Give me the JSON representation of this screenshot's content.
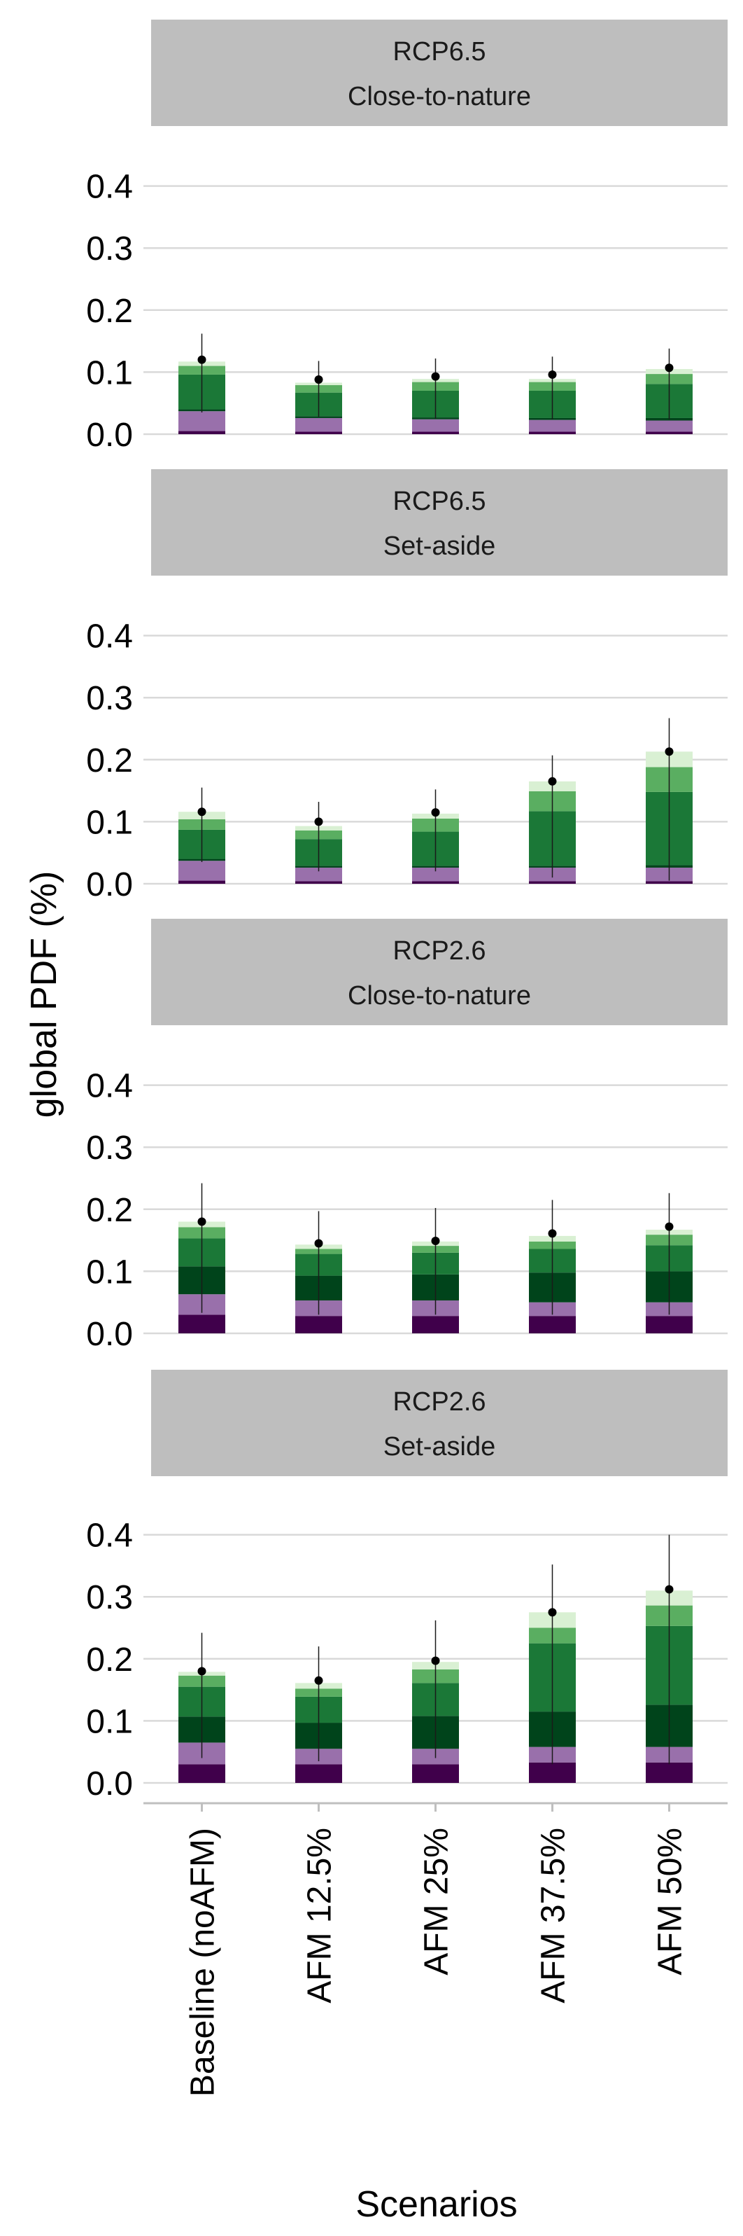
{
  "chart_data": {
    "type": "bar",
    "stacked": true,
    "xlabel": "Scenarios",
    "ylabel": "global PDF (%)",
    "categories": [
      "Baseline (noAFM)",
      "AFM 12.5%",
      "AFM 25%",
      "AFM 37.5%",
      "AFM 50%"
    ],
    "ylim": [
      0,
      0.45
    ],
    "yticks": [
      "0.0",
      "0.1",
      "0.2",
      "0.3",
      "0.4"
    ],
    "grid": true,
    "segment_colors": [
      "#40004b",
      "#9970ab",
      "#00441b",
      "#1b7837",
      "#5aae61",
      "#d9f0d3"
    ],
    "panels": [
      {
        "title_line1": "RCP6.5",
        "title_line2": "Close-to-nature",
        "stacks": [
          [
            0.005,
            0.032,
            0.003,
            0.056,
            0.014,
            0.007
          ],
          [
            0.004,
            0.022,
            0.003,
            0.038,
            0.012,
            0.004
          ],
          [
            0.004,
            0.02,
            0.003,
            0.043,
            0.014,
            0.005
          ],
          [
            0.004,
            0.019,
            0.003,
            0.044,
            0.014,
            0.005
          ],
          [
            0.004,
            0.018,
            0.004,
            0.055,
            0.016,
            0.008
          ]
        ],
        "points": [
          0.12,
          0.088,
          0.093,
          0.096,
          0.107
        ],
        "err_low": [
          0.035,
          0.028,
          0.025,
          0.024,
          0.024
        ],
        "err_high": [
          0.162,
          0.118,
          0.122,
          0.125,
          0.138
        ]
      },
      {
        "title_line1": "RCP6.5",
        "title_line2": "Set-aside",
        "stacks": [
          [
            0.005,
            0.032,
            0.003,
            0.047,
            0.017,
            0.012
          ],
          [
            0.004,
            0.022,
            0.003,
            0.043,
            0.014,
            0.007
          ],
          [
            0.004,
            0.022,
            0.003,
            0.055,
            0.021,
            0.008
          ],
          [
            0.004,
            0.022,
            0.003,
            0.088,
            0.032,
            0.016
          ],
          [
            0.004,
            0.022,
            0.004,
            0.118,
            0.04,
            0.025
          ]
        ],
        "points": [
          0.116,
          0.1,
          0.115,
          0.165,
          0.213
        ],
        "err_low": [
          0.035,
          0.02,
          0.02,
          0.01,
          0.005
        ],
        "err_high": [
          0.155,
          0.132,
          0.152,
          0.207,
          0.267
        ]
      },
      {
        "title_line1": "RCP2.6",
        "title_line2": "Close-to-nature",
        "stacks": [
          [
            0.03,
            0.033,
            0.045,
            0.045,
            0.018,
            0.009
          ],
          [
            0.028,
            0.025,
            0.04,
            0.035,
            0.008,
            0.007
          ],
          [
            0.028,
            0.025,
            0.042,
            0.035,
            0.011,
            0.007
          ],
          [
            0.028,
            0.022,
            0.048,
            0.038,
            0.012,
            0.009
          ],
          [
            0.028,
            0.022,
            0.05,
            0.042,
            0.017,
            0.008
          ]
        ],
        "points": [
          0.18,
          0.145,
          0.149,
          0.161,
          0.172
        ],
        "err_low": [
          0.033,
          0.03,
          0.03,
          0.03,
          0.03
        ],
        "err_high": [
          0.242,
          0.197,
          0.202,
          0.215,
          0.226
        ]
      },
      {
        "title_line1": "RCP2.6",
        "title_line2": "Set-aside",
        "stacks": [
          [
            0.03,
            0.035,
            0.042,
            0.048,
            0.018,
            0.006
          ],
          [
            0.03,
            0.025,
            0.042,
            0.042,
            0.013,
            0.009
          ],
          [
            0.03,
            0.025,
            0.053,
            0.053,
            0.022,
            0.012
          ],
          [
            0.033,
            0.025,
            0.057,
            0.11,
            0.025,
            0.025
          ],
          [
            0.033,
            0.025,
            0.068,
            0.127,
            0.033,
            0.024
          ]
        ],
        "points": [
          0.18,
          0.165,
          0.197,
          0.275,
          0.312
        ],
        "err_low": [
          0.04,
          0.035,
          0.04,
          0.03,
          0.03
        ],
        "err_high": [
          0.242,
          0.22,
          0.262,
          0.352,
          0.4
        ]
      }
    ]
  }
}
